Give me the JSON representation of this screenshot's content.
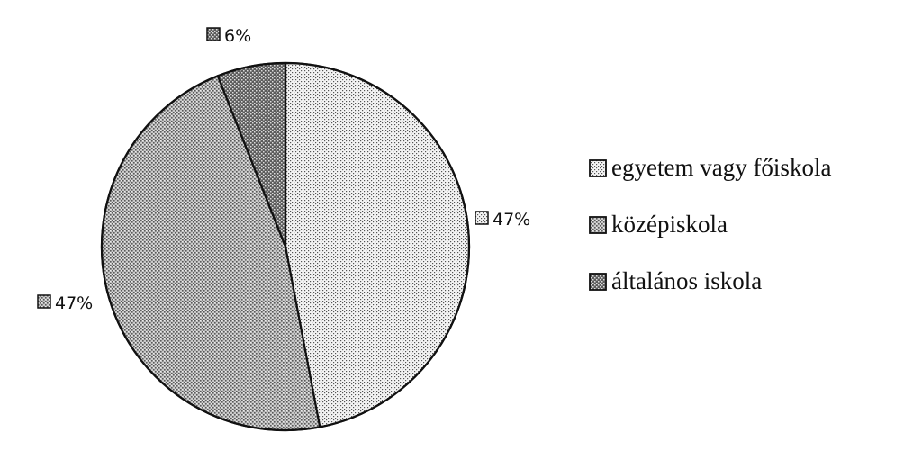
{
  "chart_data": {
    "type": "pie",
    "slices": [
      {
        "label": "egyetem vagy főiskola",
        "value": 47,
        "display": "47%",
        "pattern": "light-dots"
      },
      {
        "label": "középiskola",
        "value": 47,
        "display": "47%",
        "pattern": "medium-cross"
      },
      {
        "label": "általános iskola",
        "value": 6,
        "display": "6%",
        "pattern": "dark-cross"
      }
    ],
    "legend_position": "right",
    "colors": {
      "stroke": "#111111",
      "background": "#ffffff"
    }
  }
}
